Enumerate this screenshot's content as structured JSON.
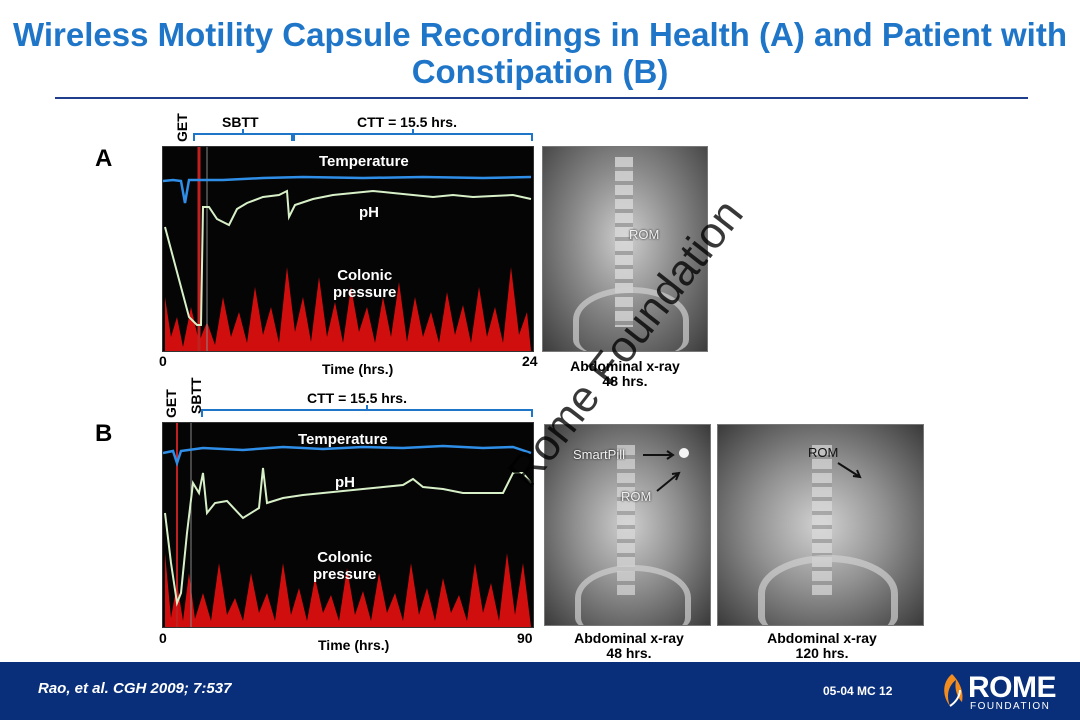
{
  "title": "Wireless Motility Capsule Recordings in Health (A) and Patient with Constipation (B)",
  "panel_a": {
    "letter": "A",
    "get_label": "GET",
    "sbtt_label": "SBTT",
    "ctt_label": "CTT = 15.5 hrs.",
    "temperature_label": "Temperature",
    "ph_label": "pH",
    "colonic_label_1": "Colonic",
    "colonic_label_2": "pressure",
    "x_start": "0",
    "x_end": "24",
    "x_axis_label": "Time (hrs.)",
    "xray_marker": "ROM",
    "xray_caption_1": "Abdominal x-ray",
    "xray_caption_2": "48 hrs."
  },
  "panel_b": {
    "letter": "B",
    "get_label": "GET",
    "sbtt_label": "SBTT",
    "ctt_label": "CTT = 15.5 hrs.",
    "temperature_label": "Temperature",
    "ph_label": "pH",
    "colonic_label_1": "Colonic",
    "colonic_label_2": "pressure",
    "x_start": "0",
    "x_end": "90",
    "x_axis_label": "Time (hrs.)",
    "xray1_smartpill": "SmartPill",
    "xray1_rom": "ROM",
    "xray1_caption_1": "Abdominal x-ray",
    "xray1_caption_2": "48 hrs.",
    "xray2_rom": "ROM",
    "xray2_caption_1": "Abdominal x-ray",
    "xray2_caption_2": "120 hrs."
  },
  "watermark": "Rome Foundation",
  "footer": {
    "citation": "Rao, et al. CGH 2009; 7:537",
    "slide_code": "05-04  MC 12",
    "logo_word": "ROME",
    "logo_sub": "FOUNDATION"
  },
  "colors": {
    "title_blue": "#1f76c8",
    "footer_navy": "#0a2f7a",
    "temperature_trace": "#2f8fe8",
    "ph_trace": "#d8f0c8",
    "pressure_trace": "#e81010"
  }
}
